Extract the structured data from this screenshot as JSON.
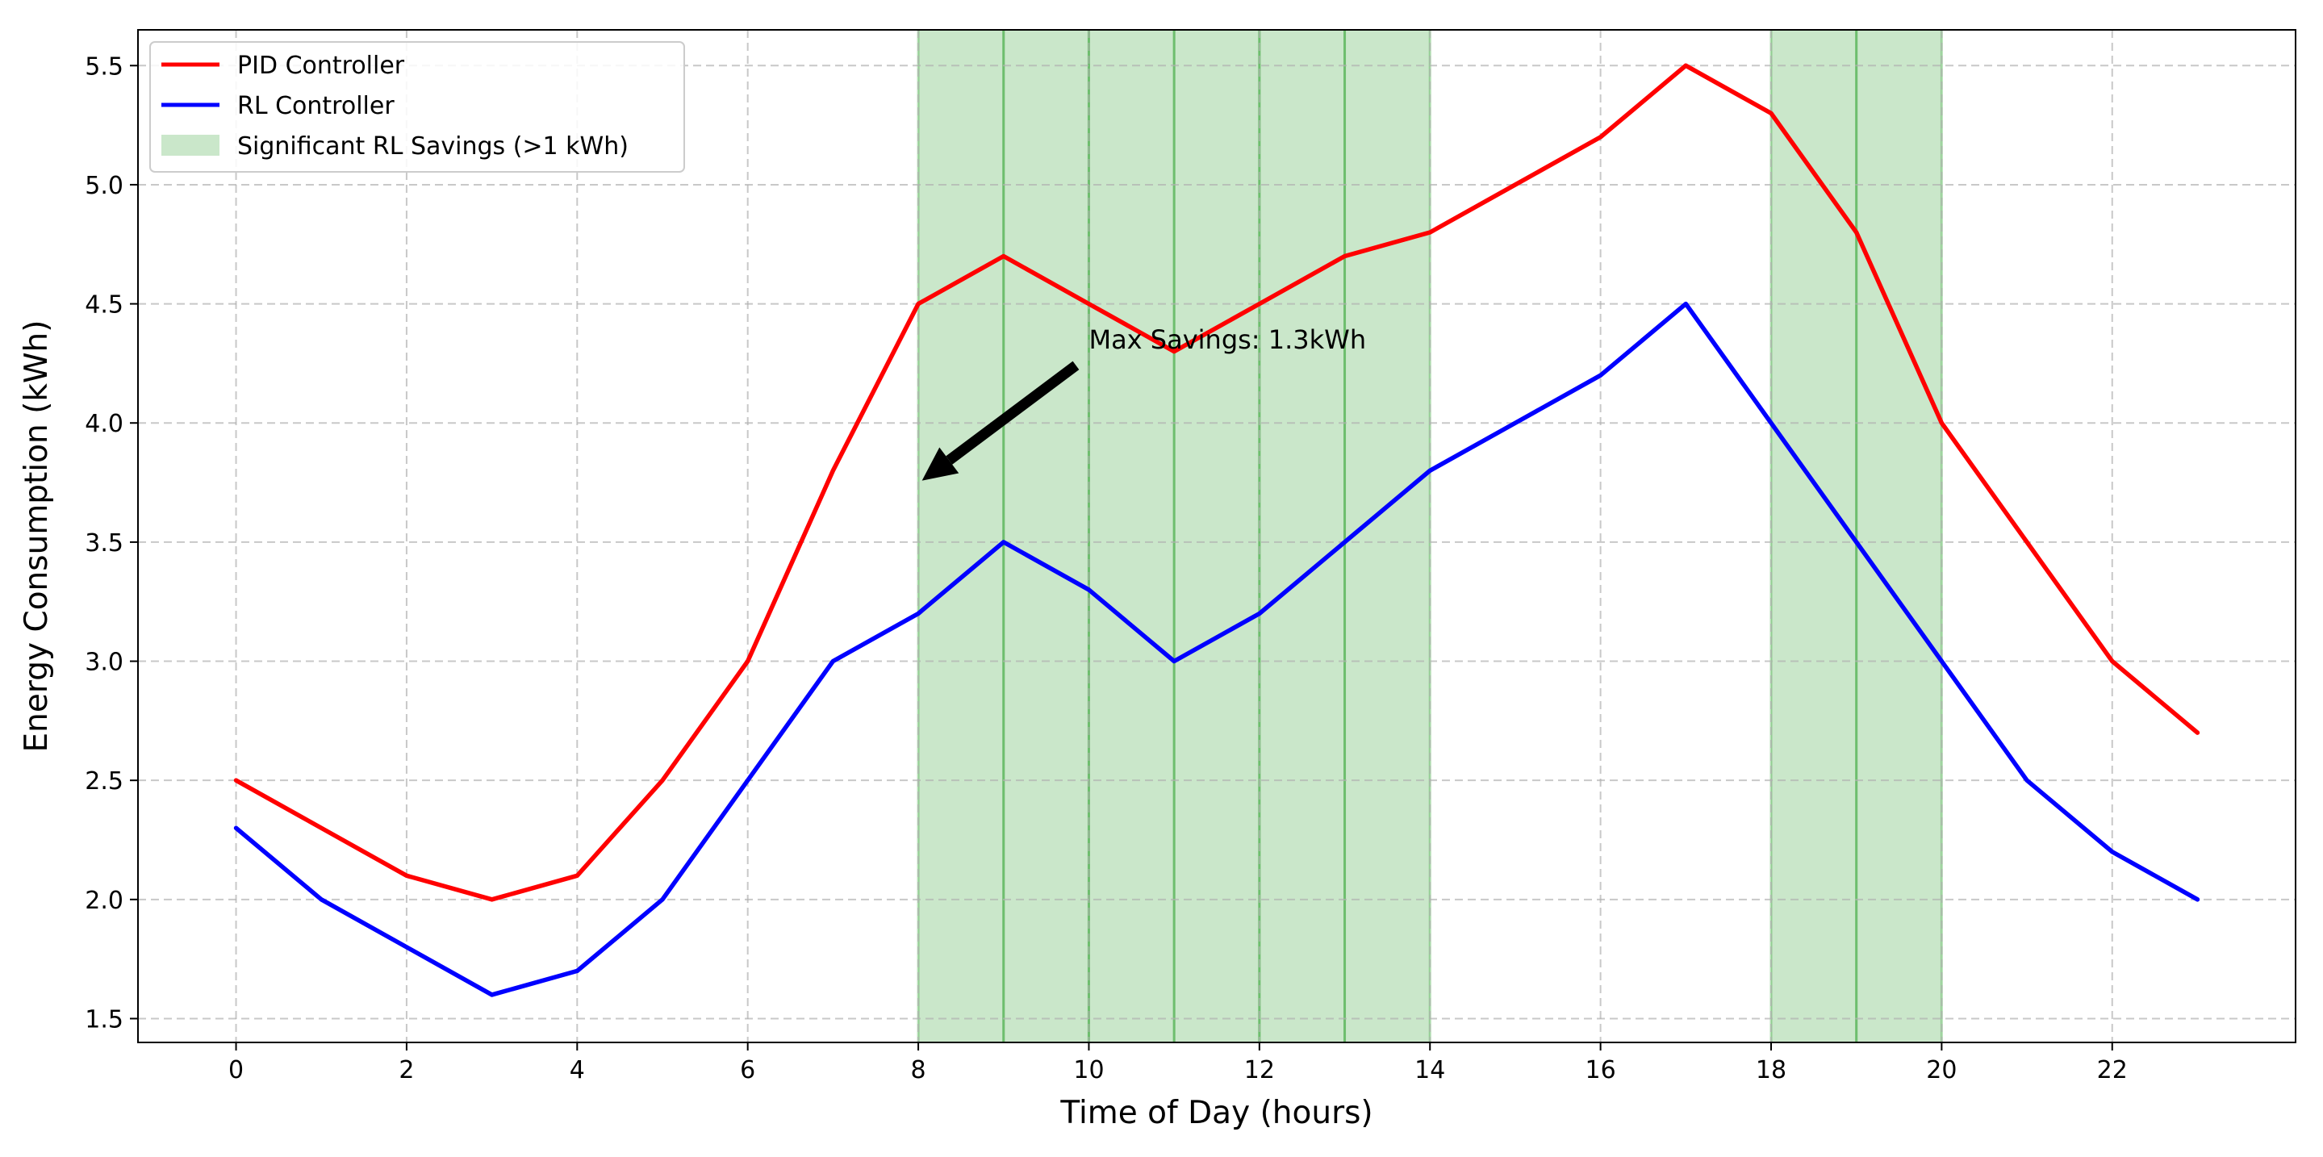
{
  "chart_data": {
    "type": "line",
    "title": "",
    "xlabel": "Time of Day (hours)",
    "ylabel": "Energy Consumption (kWh)",
    "xlim": [
      -1.15,
      24.15
    ],
    "ylim": [
      1.4,
      5.65
    ],
    "xticks": [
      0,
      2,
      4,
      6,
      8,
      10,
      12,
      14,
      16,
      18,
      20,
      22
    ],
    "yticks": [
      1.5,
      2.0,
      2.5,
      3.0,
      3.5,
      4.0,
      4.5,
      5.0,
      5.5
    ],
    "ytick_labels": [
      "1.5",
      "2.0",
      "2.5",
      "3.0",
      "3.5",
      "4.0",
      "4.5",
      "5.0",
      "5.5"
    ],
    "grid": true,
    "legend_position": "top-left",
    "x": [
      0,
      1,
      2,
      3,
      4,
      5,
      6,
      7,
      8,
      9,
      10,
      11,
      12,
      13,
      14,
      15,
      16,
      17,
      18,
      19,
      20,
      21,
      22,
      23
    ],
    "series": [
      {
        "name": "PID Controller",
        "color": "#ff0000",
        "values": [
          2.5,
          2.3,
          2.1,
          2.0,
          2.1,
          2.5,
          3.0,
          3.8,
          4.5,
          4.7,
          4.5,
          4.3,
          4.5,
          4.7,
          4.8,
          5.0,
          5.2,
          5.5,
          5.3,
          4.8,
          4.0,
          3.5,
          3.0,
          2.7
        ]
      },
      {
        "name": "RL Controller",
        "color": "#0000ff",
        "values": [
          2.3,
          2.0,
          1.8,
          1.6,
          1.7,
          2.0,
          2.5,
          3.0,
          3.2,
          3.5,
          3.3,
          3.0,
          3.2,
          3.5,
          3.8,
          4.0,
          4.2,
          4.5,
          4.0,
          3.5,
          3.0,
          2.5,
          2.2,
          2.0
        ]
      }
    ],
    "shaded_spans": {
      "label": "Significant RL Savings (>1 kWh)",
      "color": "#2ca02c",
      "ranges": [
        [
          8,
          9
        ],
        [
          9,
          10
        ],
        [
          10,
          11
        ],
        [
          11,
          12
        ],
        [
          12,
          13
        ],
        [
          13,
          14
        ],
        [
          18,
          19
        ],
        [
          19,
          20
        ]
      ]
    },
    "annotation": {
      "text": "Max Savings: 1.3kWh",
      "text_x": 10,
      "text_y": 4.35,
      "arrow_x": 8.1,
      "arrow_y": 3.88
    }
  }
}
